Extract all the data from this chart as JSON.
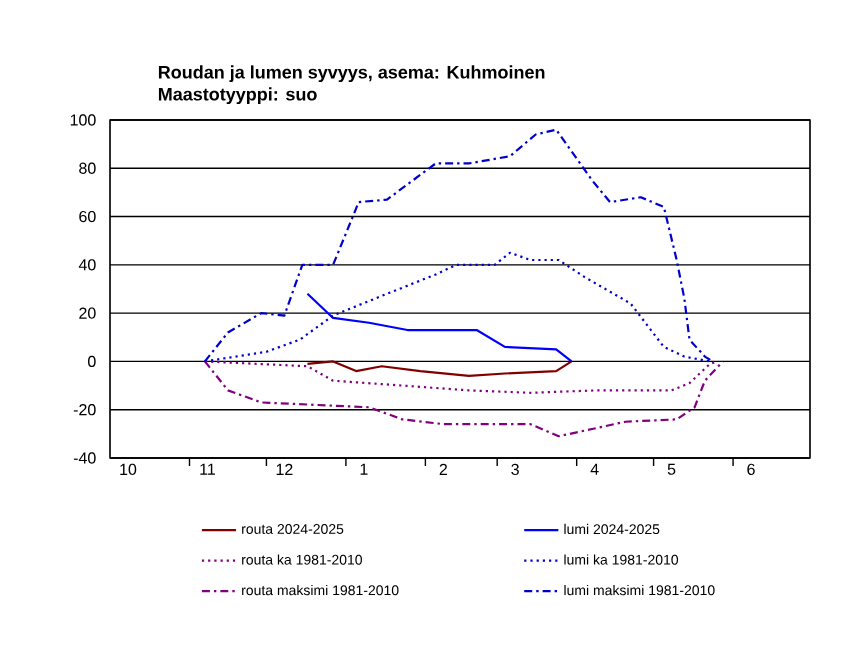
{
  "chart_data": {
    "type": "line",
    "title": "Roudan ja lumen syvyys, asema: Kuhmoinen",
    "subtitle": "Maastotyyppi: suo",
    "xlim": [
      "2024-10-01",
      "2025-07-01"
    ],
    "ylim": [
      -40,
      100
    ],
    "yticks": [
      -40,
      -20,
      0,
      20,
      40,
      60,
      80,
      100
    ],
    "xticks": [
      {
        "value": "2024-10-08",
        "label": "10"
      },
      {
        "value": "2024-11-08",
        "label": "11"
      },
      {
        "value": "2024-12-08",
        "label": "12"
      },
      {
        "value": "2025-01-08",
        "label": "1"
      },
      {
        "value": "2025-02-08",
        "label": "2"
      },
      {
        "value": "2025-03-08",
        "label": "3"
      },
      {
        "value": "2025-04-08",
        "label": "4"
      },
      {
        "value": "2025-05-08",
        "label": "5"
      },
      {
        "value": "2025-06-08",
        "label": "6"
      },
      {
        "value": "2024-11-01",
        "label": null
      },
      {
        "value": "2024-12-01",
        "label": null
      },
      {
        "value": "2025-01-01",
        "label": null
      },
      {
        "value": "2025-02-01",
        "label": null
      },
      {
        "value": "2025-03-01",
        "label": null
      },
      {
        "value": "2025-04-01",
        "label": null
      },
      {
        "value": "2025-05-01",
        "label": null
      },
      {
        "value": "2025-06-01",
        "label": null
      }
    ],
    "grid": "y",
    "legend": "bottom",
    "marker": "none",
    "series": [
      {
        "name": "routa 2024-2025",
        "color": "#800000",
        "line_style": "solid",
        "x": [
          "2024-12-17",
          "2024-12-27",
          "2025-01-05",
          "2025-01-15",
          "2025-01-30",
          "2025-02-18",
          "2025-03-04",
          "2025-03-24",
          "2025-03-30"
        ],
        "values": [
          -1,
          0,
          -4,
          -2,
          -4,
          -6,
          -5,
          -4,
          0
        ]
      },
      {
        "name": "lumi 2024-2025",
        "color": "#0000ff",
        "line_style": "solid",
        "x": [
          "2024-12-17",
          "2024-12-27",
          "2025-01-10",
          "2025-01-25",
          "2025-02-13",
          "2025-02-21",
          "2025-03-04",
          "2025-03-24",
          "2025-03-30"
        ],
        "values": [
          28,
          18,
          16,
          13,
          13,
          13,
          6,
          5,
          0
        ]
      },
      {
        "name": "routa ka 1981-2010",
        "color": "#800080",
        "line_style": "dotted",
        "x": [
          "2024-11-07",
          "2024-12-17",
          "2024-12-27",
          "2025-01-23",
          "2025-02-18",
          "2025-03-14",
          "2025-04-09",
          "2025-05-08",
          "2025-05-15",
          "2025-05-23",
          "2025-05-26"
        ],
        "values": [
          0,
          -2,
          -8,
          -10,
          -12,
          -13,
          -12,
          -12,
          -9,
          -1,
          0
        ]
      },
      {
        "name": "lumi ka 1981-2010",
        "color": "#0000cc",
        "line_style": "dotted",
        "x": [
          "2024-11-07",
          "2024-12-01",
          "2024-12-14",
          "2024-12-27",
          "2025-01-17",
          "2025-02-05",
          "2025-02-13",
          "2025-02-28",
          "2025-03-06",
          "2025-03-14",
          "2025-03-25",
          "2025-04-04",
          "2025-04-22",
          "2025-05-05",
          "2025-05-13",
          "2025-05-23"
        ],
        "values": [
          0,
          4,
          9,
          19,
          28,
          36,
          40,
          40,
          45,
          42,
          42,
          35,
          24,
          6,
          2,
          0
        ]
      },
      {
        "name": "routa maksimi 1981-2010",
        "color": "#800080",
        "line_style": "dashdot",
        "x": [
          "2024-11-07",
          "2024-11-16",
          "2024-11-29",
          "2025-01-10",
          "2025-01-23",
          "2025-02-08",
          "2025-03-01",
          "2025-03-14",
          "2025-03-25",
          "2025-04-07",
          "2025-04-20",
          "2025-05-10",
          "2025-05-17",
          "2025-05-21",
          "2025-05-28"
        ],
        "values": [
          0,
          -12,
          -17,
          -19,
          -24,
          -26,
          -26,
          -26,
          -31,
          -28,
          -25,
          -24,
          -19,
          -8,
          0
        ]
      },
      {
        "name": "lumi maksimi 1981-2010",
        "color": "#0000cc",
        "line_style": "dashdot",
        "x": [
          "2024-11-07",
          "2024-11-16",
          "2024-11-29",
          "2024-12-08",
          "2024-12-15",
          "2024-12-27",
          "2025-01-06",
          "2025-01-17",
          "2025-02-05",
          "2025-02-18",
          "2025-03-06",
          "2025-03-16",
          "2025-03-24",
          "2025-04-07",
          "2025-04-14",
          "2025-04-26",
          "2025-05-05",
          "2025-05-10",
          "2025-05-13",
          "2025-05-15",
          "2025-05-21",
          "2025-05-24"
        ],
        "values": [
          0,
          12,
          20,
          19,
          40,
          40,
          66,
          67,
          82,
          82,
          85,
          94,
          96,
          75,
          66,
          68,
          64,
          42,
          26,
          9,
          2,
          0
        ]
      }
    ]
  }
}
